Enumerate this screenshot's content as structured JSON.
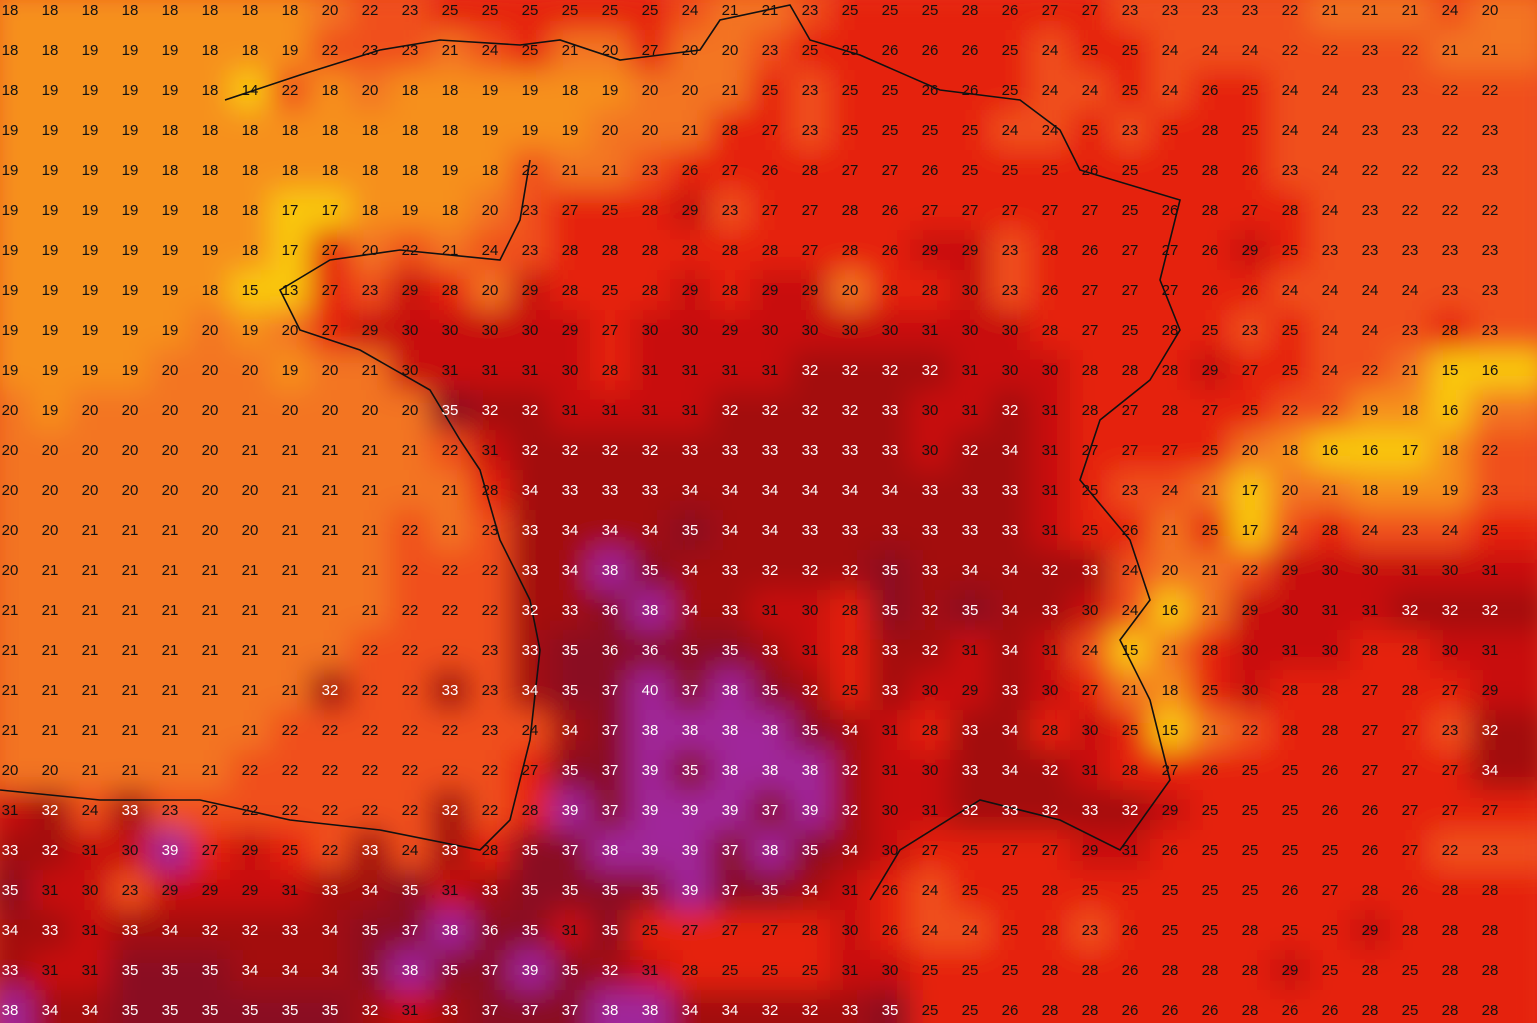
{
  "grid": {
    "rows": [
      [
        18,
        18,
        18,
        18,
        18,
        18,
        18,
        18,
        20,
        22,
        23,
        25,
        25,
        25,
        25,
        25,
        25,
        24,
        21,
        21,
        23,
        25,
        25,
        25,
        28,
        26,
        27,
        27,
        23,
        23,
        23,
        23,
        22,
        21,
        21,
        21,
        24,
        20
      ],
      [
        18,
        18,
        19,
        19,
        19,
        18,
        18,
        19,
        22,
        23,
        23,
        21,
        24,
        25,
        21,
        20,
        27,
        20,
        20,
        23,
        25,
        25,
        26,
        26,
        26,
        25,
        24,
        25,
        25,
        24,
        24,
        24,
        22,
        22,
        23,
        22,
        21,
        21
      ],
      [
        18,
        19,
        19,
        19,
        19,
        18,
        14,
        22,
        18,
        20,
        18,
        18,
        19,
        19,
        18,
        19,
        20,
        20,
        21,
        25,
        23,
        25,
        25,
        26,
        26,
        25,
        24,
        24,
        25,
        24,
        26,
        25,
        24,
        24,
        23,
        23,
        22,
        22
      ],
      [
        19,
        19,
        19,
        19,
        18,
        18,
        18,
        18,
        18,
        18,
        18,
        18,
        19,
        19,
        19,
        20,
        20,
        21,
        28,
        27,
        23,
        25,
        25,
        25,
        25,
        24,
        24,
        25,
        23,
        25,
        28,
        25,
        24,
        24,
        23,
        23,
        22,
        23
      ],
      [
        19,
        19,
        19,
        19,
        18,
        18,
        18,
        18,
        18,
        18,
        18,
        19,
        18,
        22,
        21,
        21,
        23,
        26,
        27,
        26,
        28,
        27,
        27,
        26,
        25,
        25,
        25,
        26,
        25,
        25,
        28,
        26,
        23,
        24,
        22,
        22,
        22,
        23
      ],
      [
        19,
        19,
        19,
        19,
        19,
        18,
        18,
        17,
        17,
        18,
        19,
        18,
        20,
        23,
        27,
        25,
        28,
        29,
        23,
        27,
        27,
        28,
        26,
        27,
        27,
        27,
        27,
        27,
        25,
        26,
        28,
        27,
        28,
        24,
        23,
        22,
        22,
        22
      ],
      [
        19,
        19,
        19,
        19,
        19,
        19,
        18,
        17,
        27,
        20,
        22,
        21,
        24,
        23,
        28,
        28,
        28,
        28,
        28,
        28,
        27,
        28,
        26,
        29,
        29,
        23,
        28,
        26,
        27,
        27,
        26,
        29,
        25,
        23,
        23,
        23,
        23,
        23
      ],
      [
        19,
        19,
        19,
        19,
        19,
        18,
        15,
        13,
        27,
        23,
        29,
        28,
        20,
        29,
        28,
        25,
        28,
        29,
        28,
        29,
        29,
        20,
        28,
        28,
        30,
        23,
        26,
        27,
        27,
        27,
        26,
        26,
        24,
        24,
        24,
        24,
        23,
        23
      ],
      [
        19,
        19,
        19,
        19,
        19,
        20,
        19,
        20,
        27,
        29,
        30,
        30,
        30,
        30,
        29,
        27,
        30,
        30,
        29,
        30,
        30,
        30,
        30,
        31,
        30,
        30,
        28,
        27,
        25,
        28,
        25,
        23,
        25,
        24,
        24,
        23,
        28,
        23
      ],
      [
        19,
        19,
        19,
        19,
        20,
        20,
        20,
        19,
        20,
        21,
        30,
        31,
        31,
        31,
        30,
        28,
        31,
        31,
        31,
        31,
        32,
        32,
        32,
        32,
        31,
        30,
        30,
        28,
        28,
        28,
        29,
        27,
        25,
        24,
        22,
        21,
        15,
        16
      ],
      [
        20,
        19,
        20,
        20,
        20,
        20,
        21,
        20,
        20,
        20,
        20,
        35,
        32,
        32,
        31,
        31,
        31,
        31,
        32,
        32,
        32,
        32,
        33,
        30,
        31,
        32,
        31,
        28,
        27,
        28,
        27,
        25,
        22,
        22,
        19,
        18,
        16,
        20
      ],
      [
        20,
        20,
        20,
        20,
        20,
        20,
        21,
        21,
        21,
        21,
        21,
        22,
        31,
        32,
        32,
        32,
        32,
        33,
        33,
        33,
        33,
        33,
        33,
        30,
        32,
        34,
        31,
        27,
        27,
        27,
        25,
        20,
        18,
        16,
        16,
        17,
        18,
        22
      ],
      [
        20,
        20,
        20,
        20,
        20,
        20,
        20,
        21,
        21,
        21,
        21,
        21,
        28,
        34,
        33,
        33,
        33,
        34,
        34,
        34,
        34,
        34,
        34,
        33,
        33,
        33,
        31,
        25,
        23,
        24,
        21,
        17,
        20,
        21,
        18,
        19,
        19,
        23
      ],
      [
        20,
        20,
        21,
        21,
        21,
        20,
        20,
        21,
        21,
        21,
        22,
        21,
        23,
        33,
        34,
        34,
        34,
        35,
        34,
        34,
        33,
        33,
        33,
        33,
        33,
        33,
        31,
        25,
        26,
        21,
        25,
        17,
        24,
        28,
        24,
        23,
        24,
        25
      ],
      [
        20,
        21,
        21,
        21,
        21,
        21,
        21,
        21,
        21,
        21,
        22,
        22,
        22,
        33,
        34,
        38,
        35,
        34,
        33,
        32,
        32,
        32,
        35,
        33,
        34,
        34,
        32,
        33,
        24,
        20,
        21,
        22,
        29,
        30,
        30,
        31,
        30,
        31
      ],
      [
        21,
        21,
        21,
        21,
        21,
        21,
        21,
        21,
        21,
        21,
        22,
        22,
        22,
        32,
        33,
        36,
        38,
        34,
        33,
        31,
        30,
        28,
        35,
        32,
        35,
        34,
        33,
        30,
        24,
        16,
        21,
        29,
        30,
        31,
        31,
        32,
        32,
        32
      ],
      [
        21,
        21,
        21,
        21,
        21,
        21,
        21,
        21,
        21,
        22,
        22,
        22,
        23,
        33,
        35,
        36,
        36,
        35,
        35,
        33,
        31,
        28,
        33,
        32,
        31,
        34,
        31,
        24,
        15,
        21,
        28,
        30,
        31,
        30,
        28,
        28,
        30,
        31
      ],
      [
        21,
        21,
        21,
        21,
        21,
        21,
        21,
        21,
        32,
        22,
        22,
        33,
        23,
        34,
        35,
        37,
        40,
        37,
        38,
        35,
        32,
        25,
        33,
        30,
        29,
        33,
        30,
        27,
        21,
        18,
        25,
        30,
        28,
        28,
        27,
        28,
        27,
        29
      ],
      [
        21,
        21,
        21,
        21,
        21,
        21,
        21,
        22,
        22,
        22,
        22,
        22,
        23,
        24,
        34,
        37,
        38,
        38,
        38,
        38,
        35,
        34,
        31,
        28,
        33,
        34,
        28,
        30,
        25,
        15,
        21,
        22,
        28,
        28,
        27,
        27,
        23,
        32
      ],
      [
        20,
        20,
        21,
        21,
        21,
        21,
        22,
        22,
        22,
        22,
        22,
        22,
        22,
        27,
        35,
        37,
        39,
        35,
        38,
        38,
        38,
        32,
        31,
        30,
        33,
        34,
        32,
        31,
        28,
        27,
        26,
        25,
        25,
        26,
        27,
        27,
        27,
        34
      ],
      [
        31,
        32,
        24,
        33,
        23,
        22,
        22,
        22,
        22,
        22,
        22,
        32,
        22,
        28,
        39,
        37,
        39,
        39,
        39,
        37,
        39,
        32,
        30,
        31,
        32,
        33,
        32,
        33,
        32,
        29,
        25,
        25,
        25,
        26,
        26,
        27,
        27,
        27
      ],
      [
        33,
        32,
        31,
        30,
        39,
        27,
        29,
        25,
        22,
        33,
        24,
        33,
        28,
        35,
        37,
        38,
        39,
        39,
        37,
        38,
        35,
        34,
        30,
        27,
        25,
        27,
        27,
        29,
        31,
        26,
        25,
        25,
        25,
        25,
        26,
        27,
        22,
        23
      ],
      [
        35,
        31,
        30,
        23,
        29,
        29,
        29,
        31,
        33,
        34,
        35,
        31,
        33,
        35,
        35,
        35,
        35,
        39,
        37,
        35,
        34,
        31,
        26,
        24,
        25,
        25,
        28,
        25,
        25,
        25,
        25,
        25,
        26,
        27,
        28,
        26,
        28,
        28
      ],
      [
        34,
        33,
        31,
        33,
        34,
        32,
        32,
        33,
        34,
        35,
        37,
        38,
        36,
        35,
        31,
        35,
        25,
        27,
        27,
        27,
        28,
        30,
        26,
        24,
        24,
        25,
        28,
        23,
        26,
        25,
        25,
        28,
        25,
        25,
        29,
        28,
        28,
        28
      ],
      [
        33,
        31,
        31,
        35,
        35,
        35,
        34,
        34,
        34,
        35,
        38,
        35,
        37,
        39,
        35,
        32,
        31,
        28,
        25,
        25,
        25,
        31,
        30,
        25,
        25,
        25,
        28,
        28,
        26,
        28,
        28,
        28,
        29,
        25,
        28,
        25,
        28,
        28
      ],
      [
        38,
        34,
        34,
        35,
        35,
        35,
        35,
        35,
        35,
        32,
        31,
        33,
        37,
        37,
        37,
        38,
        38,
        34,
        34,
        32,
        32,
        33,
        35,
        25,
        25,
        26,
        28,
        28,
        26,
        26,
        26,
        28,
        26,
        26,
        28,
        25,
        28,
        28
      ]
    ]
  },
  "color_scale": [
    [
      0,
      "#f9c80e"
    ],
    [
      18,
      "#f6901c"
    ],
    [
      20,
      "#f37521"
    ],
    [
      22,
      "#f0501e"
    ],
    [
      25,
      "#e52010"
    ],
    [
      29,
      "#c80f0a"
    ],
    [
      32,
      "#a3090b"
    ],
    [
      35,
      "#8a0b22"
    ],
    [
      38,
      "#a0289a"
    ]
  ],
  "light_text_from": 32
}
